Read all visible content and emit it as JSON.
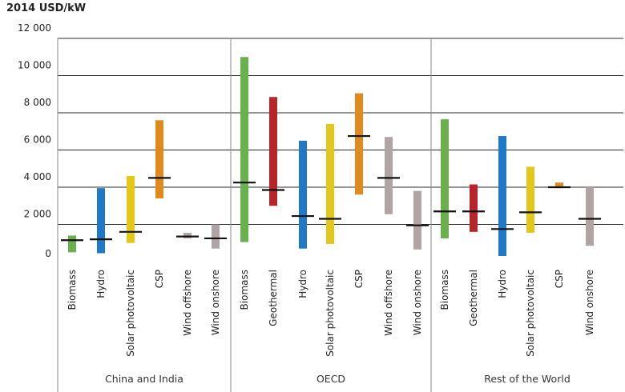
{
  "chart_data": {
    "type": "range-bar",
    "title": "2014 USD/kW",
    "ylabel": "",
    "ylim": [
      0,
      12000
    ],
    "yticks": [
      0,
      2000,
      4000,
      6000,
      8000,
      10000,
      12000
    ],
    "ytick_labels": [
      "0",
      "2 000",
      "4 000",
      "6 000",
      "8 000",
      "10 000",
      "12 000"
    ],
    "legend": "none",
    "colors": {
      "Biomass": "#6ab04c",
      "Hydro": "#1f78c8",
      "Solar photovoltaic": "#e3c81a",
      "CSP": "#e08a1e",
      "Wind offshore": "#b0a4a4",
      "Wind onshore": "#b0a4a4",
      "Geothermal": "#b5252a"
    },
    "groups": [
      {
        "name": "China and India",
        "items": [
          {
            "tech": "Biomass",
            "low": 500,
            "high": 1400,
            "mean": 1150
          },
          {
            "tech": "Hydro",
            "low": 450,
            "high": 3950,
            "mean": 1200
          },
          {
            "tech": "Solar photovoltaic",
            "low": 1000,
            "high": 4600,
            "mean": 1600
          },
          {
            "tech": "CSP",
            "low": 3400,
            "high": 7600,
            "mean": 4500
          },
          {
            "tech": "Wind offshore",
            "low": 1250,
            "high": 1550,
            "mean": 1350
          },
          {
            "tech": "Wind onshore",
            "low": 700,
            "high": 2000,
            "mean": 1250
          }
        ]
      },
      {
        "name": "OECD",
        "items": [
          {
            "tech": "Biomass",
            "low": 1050,
            "high": 11000,
            "mean": 4250
          },
          {
            "tech": "Geothermal",
            "low": 3000,
            "high": 8850,
            "mean": 3850
          },
          {
            "tech": "Hydro",
            "low": 700,
            "high": 6500,
            "mean": 2450
          },
          {
            "tech": "Solar photovoltaic",
            "low": 950,
            "high": 7400,
            "mean": 2300
          },
          {
            "tech": "CSP",
            "low": 3600,
            "high": 9050,
            "mean": 6750
          },
          {
            "tech": "Wind offshore",
            "low": 2550,
            "high": 6700,
            "mean": 4500
          },
          {
            "tech": "Wind onshore",
            "low": 650,
            "high": 3800,
            "mean": 1950
          }
        ]
      },
      {
        "name": "Rest of the World",
        "items": [
          {
            "tech": "Biomass",
            "low": 1250,
            "high": 7650,
            "mean": 2700
          },
          {
            "tech": "Geothermal",
            "low": 1600,
            "high": 4150,
            "mean": 2700
          },
          {
            "tech": "Hydro",
            "low": 300,
            "high": 6750,
            "mean": 1750
          },
          {
            "tech": "Solar photovoltaic",
            "low": 1550,
            "high": 5100,
            "mean": 2650
          },
          {
            "tech": "CSP",
            "low": 3950,
            "high": 4250,
            "mean": 4000
          },
          {
            "tech": "Wind onshore",
            "low": 850,
            "high": 4000,
            "mean": 2300
          }
        ]
      }
    ]
  }
}
